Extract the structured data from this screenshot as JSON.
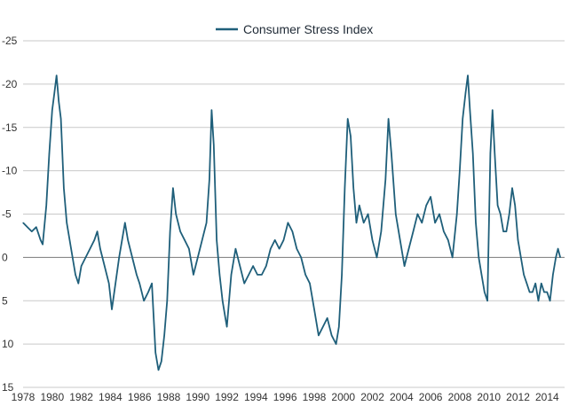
{
  "chart_data": {
    "type": "line",
    "title": "",
    "xlabel": "",
    "ylabel": "",
    "xlim": [
      1978,
      2015.2
    ],
    "ylim": [
      15,
      -25
    ],
    "y_axis_inverted": true,
    "grid": "horizontal",
    "legend": "top-center",
    "x_ticks": [
      "1978",
      "1980",
      "1982",
      "1984",
      "1986",
      "1988",
      "1990",
      "1992",
      "1994",
      "1996",
      "1998",
      "2000",
      "2002",
      "2004",
      "2006",
      "2008",
      "2010",
      "2012",
      "2014"
    ],
    "y_ticks": [
      "-25",
      "-20",
      "-15",
      "-10",
      "-5",
      "0",
      "5",
      "10",
      "15"
    ],
    "series": [
      {
        "name": "Consumer Stress Index",
        "color": "#1f5f7a",
        "points": [
          [
            1978.0,
            -4
          ],
          [
            1978.3,
            -3.5
          ],
          [
            1978.6,
            -3
          ],
          [
            1978.9,
            -3.5
          ],
          [
            1979.2,
            -2
          ],
          [
            1979.35,
            -1.5
          ],
          [
            1979.6,
            -6
          ],
          [
            1979.8,
            -12
          ],
          [
            1980.0,
            -17
          ],
          [
            1980.15,
            -19
          ],
          [
            1980.3,
            -21
          ],
          [
            1980.45,
            -18
          ],
          [
            1980.6,
            -16
          ],
          [
            1980.8,
            -8
          ],
          [
            1981.0,
            -4
          ],
          [
            1981.3,
            -1
          ],
          [
            1981.6,
            2
          ],
          [
            1981.8,
            3
          ],
          [
            1982.0,
            1
          ],
          [
            1982.3,
            0
          ],
          [
            1982.6,
            -1
          ],
          [
            1982.9,
            -2
          ],
          [
            1983.1,
            -3
          ],
          [
            1983.3,
            -1
          ],
          [
            1983.6,
            1
          ],
          [
            1983.9,
            3
          ],
          [
            1984.1,
            6
          ],
          [
            1984.35,
            3
          ],
          [
            1984.6,
            0
          ],
          [
            1984.8,
            -2
          ],
          [
            1985.0,
            -4
          ],
          [
            1985.2,
            -2
          ],
          [
            1985.5,
            0
          ],
          [
            1985.8,
            2
          ],
          [
            1986.0,
            3
          ],
          [
            1986.3,
            5
          ],
          [
            1986.6,
            4
          ],
          [
            1986.85,
            3
          ],
          [
            1987.1,
            11
          ],
          [
            1987.3,
            13
          ],
          [
            1987.5,
            12
          ],
          [
            1987.7,
            9
          ],
          [
            1987.9,
            5
          ],
          [
            1988.1,
            -3
          ],
          [
            1988.3,
            -8
          ],
          [
            1988.5,
            -5
          ],
          [
            1988.8,
            -3
          ],
          [
            1989.1,
            -2
          ],
          [
            1989.4,
            -1
          ],
          [
            1989.7,
            2
          ],
          [
            1990.0,
            0
          ],
          [
            1990.3,
            -2
          ],
          [
            1990.6,
            -4
          ],
          [
            1990.8,
            -9
          ],
          [
            1990.95,
            -17
          ],
          [
            1991.1,
            -13
          ],
          [
            1991.3,
            -2
          ],
          [
            1991.5,
            2
          ],
          [
            1991.7,
            5
          ],
          [
            1991.9,
            7
          ],
          [
            1992.0,
            8
          ],
          [
            1992.3,
            2
          ],
          [
            1992.6,
            -1
          ],
          [
            1992.9,
            1
          ],
          [
            1993.2,
            3
          ],
          [
            1993.5,
            2
          ],
          [
            1993.8,
            1
          ],
          [
            1994.1,
            2
          ],
          [
            1994.4,
            2
          ],
          [
            1994.7,
            1
          ],
          [
            1995.0,
            -1
          ],
          [
            1995.3,
            -2
          ],
          [
            1995.6,
            -1
          ],
          [
            1995.9,
            -2
          ],
          [
            1996.2,
            -4
          ],
          [
            1996.5,
            -3
          ],
          [
            1996.8,
            -1
          ],
          [
            1997.1,
            0
          ],
          [
            1997.4,
            2
          ],
          [
            1997.7,
            3
          ],
          [
            1998.0,
            6
          ],
          [
            1998.3,
            9
          ],
          [
            1998.6,
            8
          ],
          [
            1998.9,
            7
          ],
          [
            1999.2,
            9
          ],
          [
            1999.5,
            10
          ],
          [
            1999.7,
            8
          ],
          [
            1999.9,
            2
          ],
          [
            2000.1,
            -8
          ],
          [
            2000.3,
            -16
          ],
          [
            2000.5,
            -14
          ],
          [
            2000.7,
            -8
          ],
          [
            2000.9,
            -4
          ],
          [
            2001.1,
            -6
          ],
          [
            2001.4,
            -4
          ],
          [
            2001.7,
            -5
          ],
          [
            2002.0,
            -2
          ],
          [
            2002.3,
            0
          ],
          [
            2002.6,
            -3
          ],
          [
            2002.9,
            -9
          ],
          [
            2003.1,
            -16
          ],
          [
            2003.3,
            -12
          ],
          [
            2003.6,
            -5
          ],
          [
            2003.9,
            -2
          ],
          [
            2004.2,
            1
          ],
          [
            2004.5,
            -1
          ],
          [
            2004.8,
            -3
          ],
          [
            2005.1,
            -5
          ],
          [
            2005.4,
            -4
          ],
          [
            2005.7,
            -6
          ],
          [
            2006.0,
            -7
          ],
          [
            2006.3,
            -4
          ],
          [
            2006.6,
            -5
          ],
          [
            2006.9,
            -3
          ],
          [
            2007.2,
            -2
          ],
          [
            2007.5,
            0
          ],
          [
            2007.8,
            -5
          ],
          [
            2008.0,
            -10
          ],
          [
            2008.2,
            -16
          ],
          [
            2008.4,
            -19
          ],
          [
            2008.55,
            -21
          ],
          [
            2008.7,
            -17
          ],
          [
            2008.9,
            -12
          ],
          [
            2009.1,
            -4
          ],
          [
            2009.3,
            0
          ],
          [
            2009.5,
            2
          ],
          [
            2009.7,
            4
          ],
          [
            2009.9,
            5
          ],
          [
            2010.1,
            -12
          ],
          [
            2010.25,
            -17
          ],
          [
            2010.4,
            -12
          ],
          [
            2010.6,
            -6
          ],
          [
            2010.8,
            -5
          ],
          [
            2011.0,
            -3
          ],
          [
            2011.2,
            -3
          ],
          [
            2011.4,
            -5
          ],
          [
            2011.6,
            -8
          ],
          [
            2011.8,
            -6
          ],
          [
            2012.0,
            -2
          ],
          [
            2012.2,
            0
          ],
          [
            2012.4,
            2
          ],
          [
            2012.6,
            3
          ],
          [
            2012.8,
            4
          ],
          [
            2013.0,
            4
          ],
          [
            2013.2,
            3
          ],
          [
            2013.4,
            5
          ],
          [
            2013.6,
            3
          ],
          [
            2013.8,
            4
          ],
          [
            2014.0,
            4
          ],
          [
            2014.2,
            5
          ],
          [
            2014.4,
            2
          ],
          [
            2014.6,
            0
          ],
          [
            2014.75,
            -1
          ],
          [
            2014.9,
            0
          ]
        ]
      }
    ]
  }
}
